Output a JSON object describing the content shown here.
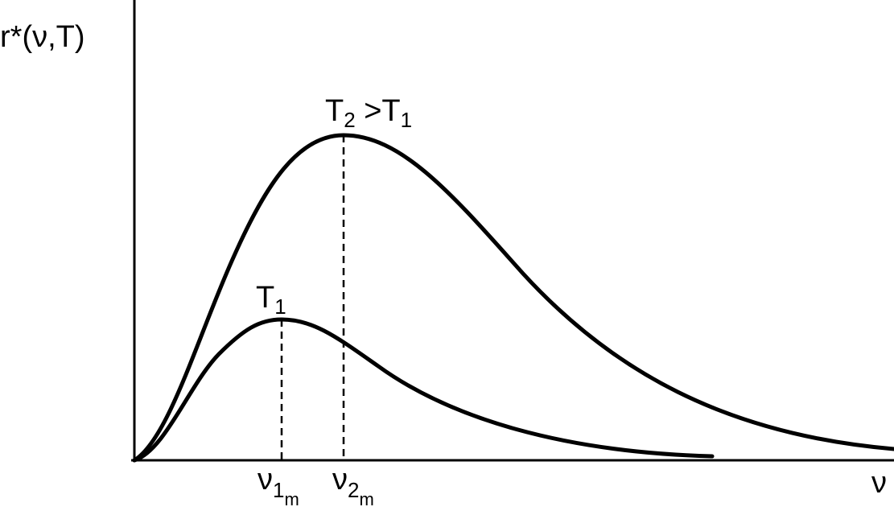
{
  "axes": {
    "y_label": "r*(ν,T)",
    "x_label": "ν"
  },
  "curves": [
    {
      "label": [
        {
          "text": "T",
          "sub": "1"
        }
      ],
      "peak_marker": {
        "text": "ν",
        "sub": "1",
        "subsub": "m"
      }
    },
    {
      "label": [
        {
          "text": "T",
          "sub": "2"
        },
        {
          "text": " >T",
          "sub": "1"
        }
      ],
      "peak_marker": {
        "text": "ν",
        "sub": "2",
        "subsub": "m"
      }
    }
  ]
}
